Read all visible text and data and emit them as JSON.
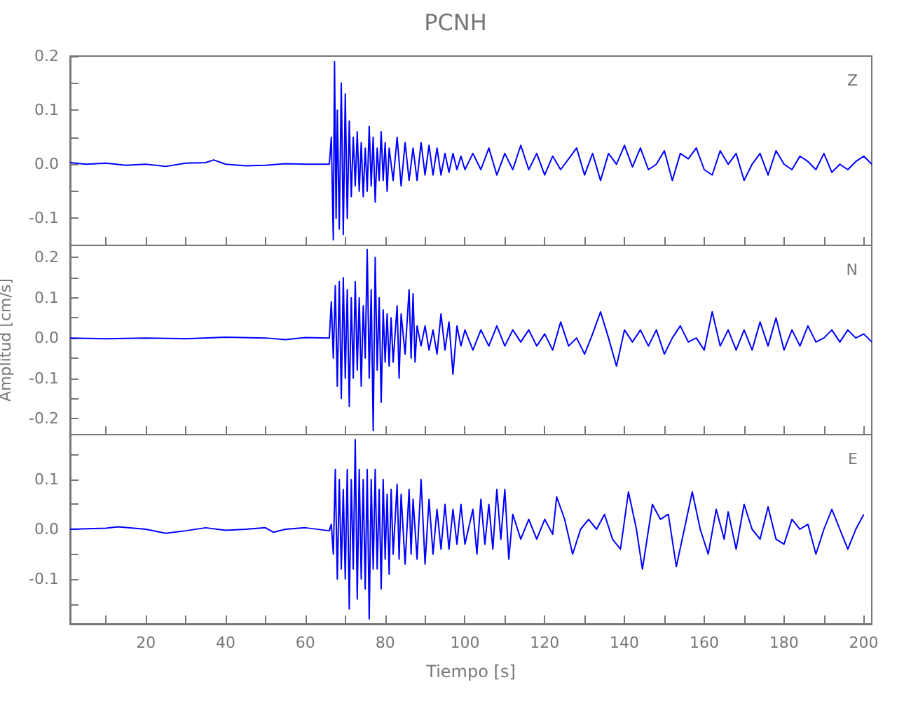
{
  "chart_data": [
    {
      "type": "line",
      "title": "PCNH",
      "annotations": [
        "Z"
      ],
      "tick_labels": "y",
      "grid": false,
      "marker": "none",
      "xlim": [
        1,
        202
      ],
      "xticks": [
        {
          "value": 10,
          "label": null
        },
        {
          "value": 20,
          "label": null
        },
        {
          "value": 30,
          "label": null
        },
        {
          "value": 40,
          "label": null
        },
        {
          "value": 50,
          "label": null
        },
        {
          "value": 60,
          "label": null
        },
        {
          "value": 70,
          "label": null
        },
        {
          "value": 80,
          "label": null
        },
        {
          "value": 90,
          "label": null
        },
        {
          "value": 100,
          "label": null
        },
        {
          "value": 110,
          "label": null
        },
        {
          "value": 120,
          "label": null
        },
        {
          "value": 130,
          "label": null
        },
        {
          "value": 140,
          "label": null
        },
        {
          "value": 150,
          "label": null
        },
        {
          "value": 160,
          "label": null
        },
        {
          "value": 170,
          "label": null
        },
        {
          "value": 180,
          "label": null
        },
        {
          "value": 190,
          "label": null
        },
        {
          "value": 200,
          "label": null
        }
      ],
      "ylim": [
        -0.15,
        0.2
      ],
      "yticks": [
        {
          "value": -0.1,
          "label": "-0.1"
        },
        {
          "value": -0.05,
          "label": null
        },
        {
          "value": 0,
          "label": "0.0"
        },
        {
          "value": 0.05,
          "label": null
        },
        {
          "value": 0.1,
          "label": "0.1"
        },
        {
          "value": 0.15,
          "label": null
        },
        {
          "value": 0.2,
          "label": "0.2"
        }
      ],
      "x": [
        1,
        5,
        10,
        15,
        20,
        25,
        30,
        35,
        37,
        40,
        45,
        50,
        55,
        60,
        65,
        66,
        66.5,
        67,
        67.3,
        67.7,
        68,
        68.5,
        69,
        69.5,
        70,
        70.5,
        71,
        71.5,
        72,
        72.5,
        73,
        73.5,
        74,
        74.5,
        75,
        75.5,
        76,
        76.5,
        77,
        77.5,
        78,
        78.5,
        79,
        79.5,
        80,
        80.5,
        81,
        82,
        83,
        84,
        85,
        86,
        87,
        88,
        89,
        90,
        91,
        92,
        93,
        94,
        95,
        96,
        97,
        98,
        99,
        100,
        102,
        104,
        106,
        108,
        110,
        112,
        114,
        116,
        118,
        120,
        122,
        124,
        126,
        128,
        130,
        132,
        134,
        136,
        138,
        140,
        142,
        144,
        146,
        148,
        150,
        152,
        154,
        156,
        158,
        160,
        162,
        164,
        166,
        168,
        170,
        172,
        174,
        176,
        178,
        180,
        182,
        184,
        186,
        188,
        190,
        192,
        194,
        196,
        198,
        200,
        202
      ],
      "series": [
        {
          "color": "#0000ff",
          "values": [
            0.003,
            0,
            0.002,
            -0.002,
            0,
            -0.004,
            0.002,
            0.003,
            0.008,
            0,
            -0.003,
            -0.002,
            0.001,
            0,
            0,
            0,
            0.05,
            -0.14,
            0.19,
            -0.1,
            0.1,
            -0.12,
            0.15,
            -0.13,
            0.13,
            -0.1,
            0.08,
            -0.06,
            0.05,
            -0.04,
            0.06,
            -0.05,
            0.04,
            -0.06,
            0.03,
            -0.05,
            0.07,
            -0.04,
            0.05,
            -0.07,
            0.03,
            -0.03,
            0.06,
            -0.03,
            0.04,
            -0.05,
            0.03,
            -0.03,
            0.05,
            -0.04,
            0.04,
            -0.03,
            0.03,
            -0.03,
            0.04,
            -0.02,
            0.035,
            -0.02,
            0.03,
            -0.02,
            0.02,
            -0.015,
            0.02,
            -0.01,
            0.015,
            -0.01,
            0.02,
            -0.01,
            0.03,
            -0.02,
            0.02,
            -0.01,
            0.035,
            -0.01,
            0.02,
            -0.02,
            0.015,
            -0.01,
            0.01,
            0.03,
            -0.02,
            0.02,
            -0.03,
            0.02,
            0,
            0.035,
            -0.005,
            0.03,
            -0.01,
            0,
            0.025,
            -0.03,
            0.02,
            0.01,
            0.03,
            -0.01,
            -0.02,
            0.025,
            0,
            0.02,
            -0.03,
            0,
            0.02,
            -0.02,
            0.025,
            0,
            -0.01,
            0.015,
            0.005,
            -0.01,
            0.02,
            -0.015,
            0,
            -0.01,
            0.005,
            0.015,
            0
          ]
        }
      ]
    },
    {
      "type": "line",
      "ylabel": "Amplitud [cm/s]",
      "annotations": [
        "N"
      ],
      "tick_labels": "y",
      "grid": false,
      "marker": "none",
      "xlim": [
        1,
        202
      ],
      "xticks": [
        {
          "value": 10,
          "label": null
        },
        {
          "value": 20,
          "label": null
        },
        {
          "value": 30,
          "label": null
        },
        {
          "value": 40,
          "label": null
        },
        {
          "value": 50,
          "label": null
        },
        {
          "value": 60,
          "label": null
        },
        {
          "value": 70,
          "label": null
        },
        {
          "value": 80,
          "label": null
        },
        {
          "value": 90,
          "label": null
        },
        {
          "value": 100,
          "label": null
        },
        {
          "value": 110,
          "label": null
        },
        {
          "value": 120,
          "label": null
        },
        {
          "value": 130,
          "label": null
        },
        {
          "value": 140,
          "label": null
        },
        {
          "value": 150,
          "label": null
        },
        {
          "value": 160,
          "label": null
        },
        {
          "value": 170,
          "label": null
        },
        {
          "value": 180,
          "label": null
        },
        {
          "value": 190,
          "label": null
        },
        {
          "value": 200,
          "label": null
        }
      ],
      "ylim": [
        -0.24,
        0.23
      ],
      "yticks": [
        {
          "value": -0.2,
          "label": "-0.2"
        },
        {
          "value": -0.15,
          "label": null
        },
        {
          "value": -0.1,
          "label": "-0.1"
        },
        {
          "value": -0.05,
          "label": null
        },
        {
          "value": 0,
          "label": "0.0"
        },
        {
          "value": 0.05,
          "label": null
        },
        {
          "value": 0.1,
          "label": "0.1"
        },
        {
          "value": 0.15,
          "label": null
        },
        {
          "value": 0.2,
          "label": "0.2"
        }
      ],
      "x": [
        1,
        10,
        20,
        30,
        40,
        50,
        55,
        60,
        66,
        66.5,
        67,
        67.5,
        68,
        68.5,
        69,
        69.5,
        70,
        70.5,
        71,
        71.5,
        72,
        72.5,
        73,
        73.5,
        74,
        74.5,
        75,
        75.5,
        76,
        76.5,
        77,
        77.5,
        78,
        78.5,
        79,
        79.5,
        80,
        80.5,
        81,
        81.5,
        82,
        83,
        83.5,
        84,
        85,
        86,
        86.5,
        87,
        87.5,
        88,
        89,
        90,
        91,
        92,
        93,
        94,
        95,
        96,
        97,
        98,
        99,
        100,
        102,
        104,
        106,
        108,
        110,
        112,
        114,
        116,
        118,
        120,
        122,
        124,
        126,
        128,
        130,
        132,
        134,
        136,
        138,
        140,
        142,
        144,
        146,
        148,
        150,
        152,
        154,
        156,
        158,
        160,
        162,
        164,
        166,
        168,
        170,
        172,
        174,
        176,
        178,
        180,
        182,
        184,
        186,
        188,
        190,
        192,
        194,
        196,
        198,
        200,
        202
      ],
      "series": [
        {
          "color": "#0000ff",
          "values": [
            0,
            -0.002,
            0,
            -0.002,
            0.002,
            0,
            -0.004,
            0.001,
            0,
            0.09,
            -0.05,
            0.13,
            -0.12,
            0.14,
            -0.15,
            0.15,
            -0.1,
            0.12,
            -0.17,
            0.1,
            -0.1,
            0.14,
            -0.08,
            0.1,
            -0.12,
            0.08,
            -0.05,
            0.22,
            -0.1,
            0.12,
            -0.23,
            0.2,
            -0.08,
            0.1,
            -0.16,
            0.07,
            -0.06,
            0.06,
            -0.07,
            0.05,
            -0.06,
            0.08,
            -0.1,
            0.06,
            -0.04,
            0.12,
            -0.05,
            0.11,
            -0.06,
            0.03,
            -0.02,
            0.03,
            -0.03,
            0.02,
            -0.04,
            0.06,
            -0.03,
            0.04,
            -0.09,
            0.03,
            -0.02,
            0.02,
            -0.03,
            0.02,
            -0.02,
            0.03,
            -0.02,
            0.02,
            -0.01,
            0.02,
            -0.02,
            0.01,
            -0.03,
            0.04,
            -0.02,
            0,
            -0.04,
            0.01,
            0.065,
            0,
            -0.07,
            0.02,
            -0.01,
            0.02,
            -0.02,
            0.02,
            -0.04,
            0,
            0.03,
            -0.01,
            0,
            -0.03,
            0.065,
            -0.02,
            0.02,
            -0.03,
            0.02,
            -0.03,
            0.04,
            -0.02,
            0.05,
            -0.03,
            0.02,
            -0.02,
            0.03,
            -0.01,
            0,
            0.02,
            -0.01,
            0.02,
            0,
            0.01,
            -0.01
          ]
        }
      ]
    },
    {
      "type": "line",
      "xlabel": "Tiempo [s]",
      "annotations": [
        "E"
      ],
      "grid": false,
      "marker": "none",
      "xlim": [
        1,
        202
      ],
      "xticks": [
        {
          "value": 10,
          "label": null
        },
        20,
        {
          "value": 30,
          "label": null
        },
        40,
        {
          "value": 50,
          "label": null
        },
        60,
        {
          "value": 70,
          "label": null
        },
        80,
        {
          "value": 90,
          "label": null
        },
        100,
        {
          "value": 110,
          "label": null
        },
        120,
        {
          "value": 130,
          "label": null
        },
        140,
        {
          "value": 150,
          "label": null
        },
        160,
        {
          "value": 170,
          "label": null
        },
        180,
        {
          "value": 190,
          "label": null
        },
        200
      ],
      "ylim": [
        -0.19,
        0.19
      ],
      "yticks": [
        {
          "value": -0.15,
          "label": null
        },
        {
          "value": -0.1,
          "label": "-0.1"
        },
        {
          "value": -0.05,
          "label": null
        },
        {
          "value": 0,
          "label": "0.0"
        },
        {
          "value": 0.05,
          "label": null
        },
        {
          "value": 0.1,
          "label": "0.1"
        },
        {
          "value": 0.15,
          "label": null
        }
      ],
      "x": [
        1,
        10,
        13,
        20,
        25,
        30,
        35,
        40,
        45,
        50,
        52,
        55,
        60,
        66,
        66.5,
        67,
        67.5,
        68,
        68.5,
        69,
        69.5,
        70,
        70.5,
        71,
        71.5,
        72,
        72.5,
        73,
        73.5,
        74,
        74.5,
        75,
        75.5,
        76,
        76.5,
        77,
        77.5,
        78,
        78.5,
        79,
        79.5,
        80,
        80.5,
        81,
        81.5,
        82,
        83,
        83.5,
        84,
        85,
        86,
        86.5,
        87,
        88,
        89,
        90,
        91,
        92,
        93,
        94,
        95,
        96,
        97,
        98,
        99,
        100,
        102,
        103,
        104,
        105,
        106,
        107,
        108,
        109,
        110,
        111,
        112,
        114,
        116,
        118,
        120,
        122,
        123,
        125,
        127,
        129,
        131,
        133,
        135,
        137,
        139,
        141,
        143,
        144.5,
        147,
        149,
        151,
        153,
        155,
        157,
        159,
        161,
        163,
        165,
        166,
        168,
        170,
        172,
        174,
        176,
        178,
        180,
        182,
        184,
        186,
        188,
        190,
        192,
        194,
        196,
        198,
        200
      ],
      "series": [
        {
          "color": "#0000ff",
          "values": [
            0,
            0.002,
            0.005,
            0,
            -0.008,
            -0.003,
            0.003,
            -0.002,
            0,
            0.003,
            -0.006,
            0,
            0.003,
            -0.003,
            0.01,
            -0.05,
            0.12,
            -0.1,
            0.1,
            -0.08,
            0.08,
            -0.1,
            0.12,
            -0.16,
            0.1,
            -0.08,
            0.18,
            -0.14,
            0.12,
            -0.1,
            0.1,
            -0.12,
            0.12,
            -0.18,
            0.1,
            -0.08,
            0.12,
            -0.08,
            0.08,
            -0.12,
            0.1,
            -0.06,
            0.07,
            -0.09,
            0.08,
            -0.05,
            0.09,
            -0.06,
            0.07,
            -0.07,
            0.08,
            -0.05,
            0.06,
            -0.06,
            0.1,
            -0.07,
            0.06,
            -0.05,
            0.04,
            -0.04,
            0.05,
            -0.04,
            0.04,
            -0.03,
            0.05,
            -0.03,
            0.04,
            -0.05,
            0.06,
            -0.03,
            0.05,
            -0.04,
            0.08,
            -0.02,
            0.08,
            -0.06,
            0.03,
            -0.02,
            0.02,
            -0.02,
            0.02,
            -0.01,
            0.065,
            0.02,
            -0.05,
            0,
            0.02,
            0,
            0.03,
            -0.02,
            -0.04,
            0.075,
            0,
            -0.08,
            0.05,
            0.02,
            0.03,
            -0.075,
            0,
            0.075,
            0,
            -0.05,
            0.04,
            -0.02,
            0.035,
            -0.04,
            0.05,
            0,
            -0.02,
            0.045,
            -0.02,
            -0.03,
            0.02,
            0,
            0.01,
            -0.05,
            0,
            0.04,
            0,
            -0.04,
            0,
            0.03
          ]
        }
      ]
    }
  ]
}
